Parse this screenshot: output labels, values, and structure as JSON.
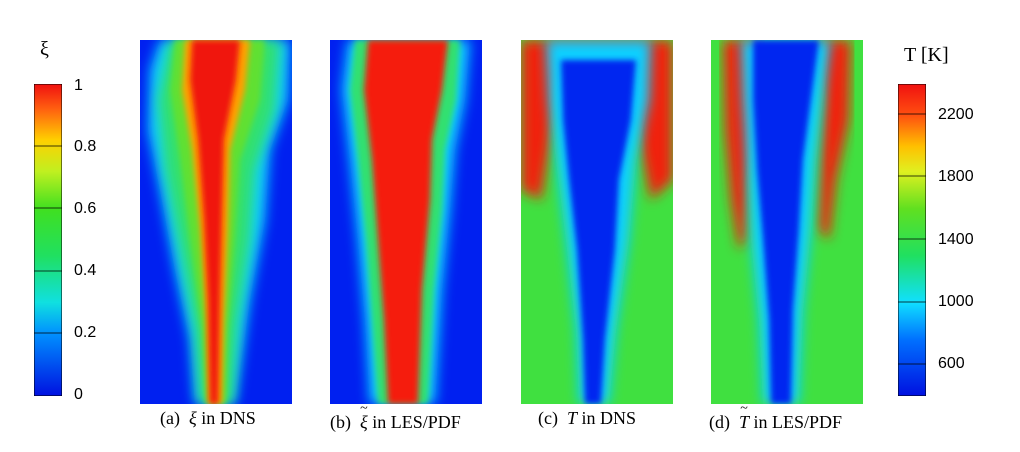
{
  "colorbar_left": {
    "title": "ξ",
    "ticks": [
      "1",
      "0.8",
      "0.6",
      "0.4",
      "0.2",
      "0"
    ]
  },
  "colorbar_right": {
    "title": "T [K]",
    "ticks": [
      "2200",
      "1800",
      "1400",
      "1000",
      "600"
    ]
  },
  "panels": [
    {
      "label": "(a)",
      "variable": "ξ",
      "method": "in DNS"
    },
    {
      "label": "(b)",
      "variable": "ξ",
      "method": "in LES/PDF"
    },
    {
      "label": "(c)",
      "variable": "T",
      "method": "in DNS"
    },
    {
      "label": "(d)",
      "variable": "T",
      "method": "in LES/PDF"
    }
  ],
  "colors": {
    "low": "#0018e8",
    "mid": "#1fd84a",
    "high": "#f01410"
  }
}
